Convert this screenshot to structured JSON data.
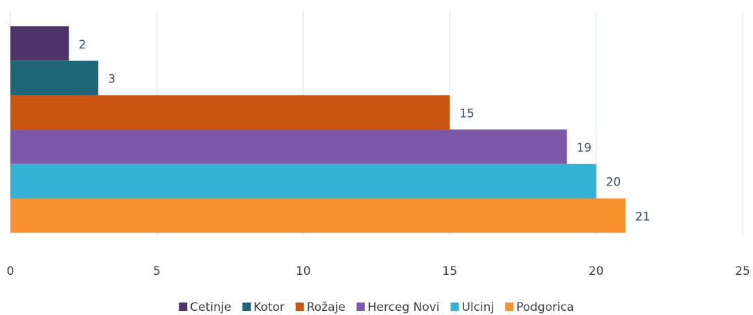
{
  "chart_data": {
    "type": "bar",
    "orientation": "horizontal",
    "series": [
      {
        "name": "Cetinje",
        "color": "#4b3568",
        "values": [
          2
        ]
      },
      {
        "name": "Kotor",
        "color": "#1e6577",
        "values": [
          3
        ]
      },
      {
        "name": "Rožaje",
        "color": "#c95410",
        "values": [
          15
        ]
      },
      {
        "name": "Herceg Novi",
        "color": "#7d57a8",
        "values": [
          19
        ]
      },
      {
        "name": "Ulcinj",
        "color": "#33b3d6",
        "values": [
          20
        ]
      },
      {
        "name": "Podgorica",
        "color": "#f8902e",
        "values": [
          21
        ]
      }
    ],
    "xlim": [
      0,
      25
    ],
    "xticks": [
      0,
      5,
      10,
      15,
      20,
      25
    ],
    "grid": true,
    "legend": "bottom"
  }
}
